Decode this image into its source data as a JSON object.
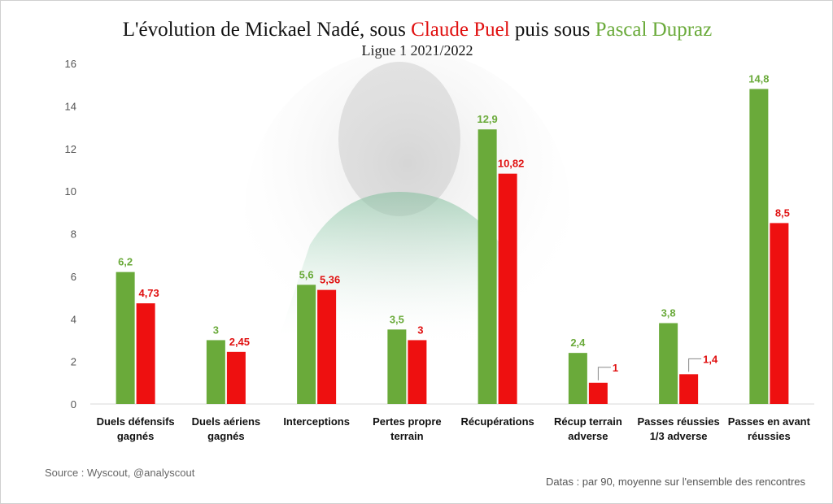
{
  "title": {
    "prefix": "L'évolution de Mickael Nadé, sous ",
    "coach1": "Claude Puel",
    "middle": " puis sous ",
    "coach2": "Pascal Dupraz"
  },
  "subtitle": "Ligue 1 2021/2022",
  "source": "Source : Wyscout, @analyscout",
  "note": "Datas : par 90, moyenne sur l'ensemble des rencontres",
  "colors": {
    "dupraz": "#6aaa3a",
    "puel": "#ee1010",
    "dupraz_text": "#6aaa3a",
    "puel_text": "#e01010"
  },
  "background_image": "player-photo-faded",
  "chart_data": {
    "type": "bar",
    "categories": [
      [
        "Duels défensifs",
        "gagnés"
      ],
      [
        "Duels aériens",
        "gagnés"
      ],
      [
        "Interceptions"
      ],
      [
        "Pertes propre",
        "terrain"
      ],
      [
        "Récupérations"
      ],
      [
        "Récup terrain",
        "adverse"
      ],
      [
        "Passes réussies",
        "1/3 adverse"
      ],
      [
        "Passes en avant",
        "réussies"
      ]
    ],
    "series": [
      {
        "values": [
          6.2,
          3,
          5.6,
          3.5,
          12.9,
          2.4,
          3.8,
          14.8
        ],
        "labels": [
          "6,2",
          "3",
          "5,6",
          "3,5",
          "12,9",
          "2,4",
          "3,8",
          "14,8"
        ],
        "color": "#6aaa3a"
      },
      {
        "values": [
          4.73,
          2.45,
          5.36,
          3,
          10.82,
          1,
          1.4,
          8.5
        ],
        "labels": [
          "4,73",
          "2,45",
          "5,36",
          "3",
          "10,82",
          "1",
          "1,4",
          "8,5"
        ],
        "color": "#ee1010"
      }
    ],
    "ylim": [
      0,
      16
    ],
    "yticks": [
      0,
      2,
      4,
      6,
      8,
      10,
      12,
      14,
      16
    ],
    "grid": false,
    "legend": "none"
  }
}
